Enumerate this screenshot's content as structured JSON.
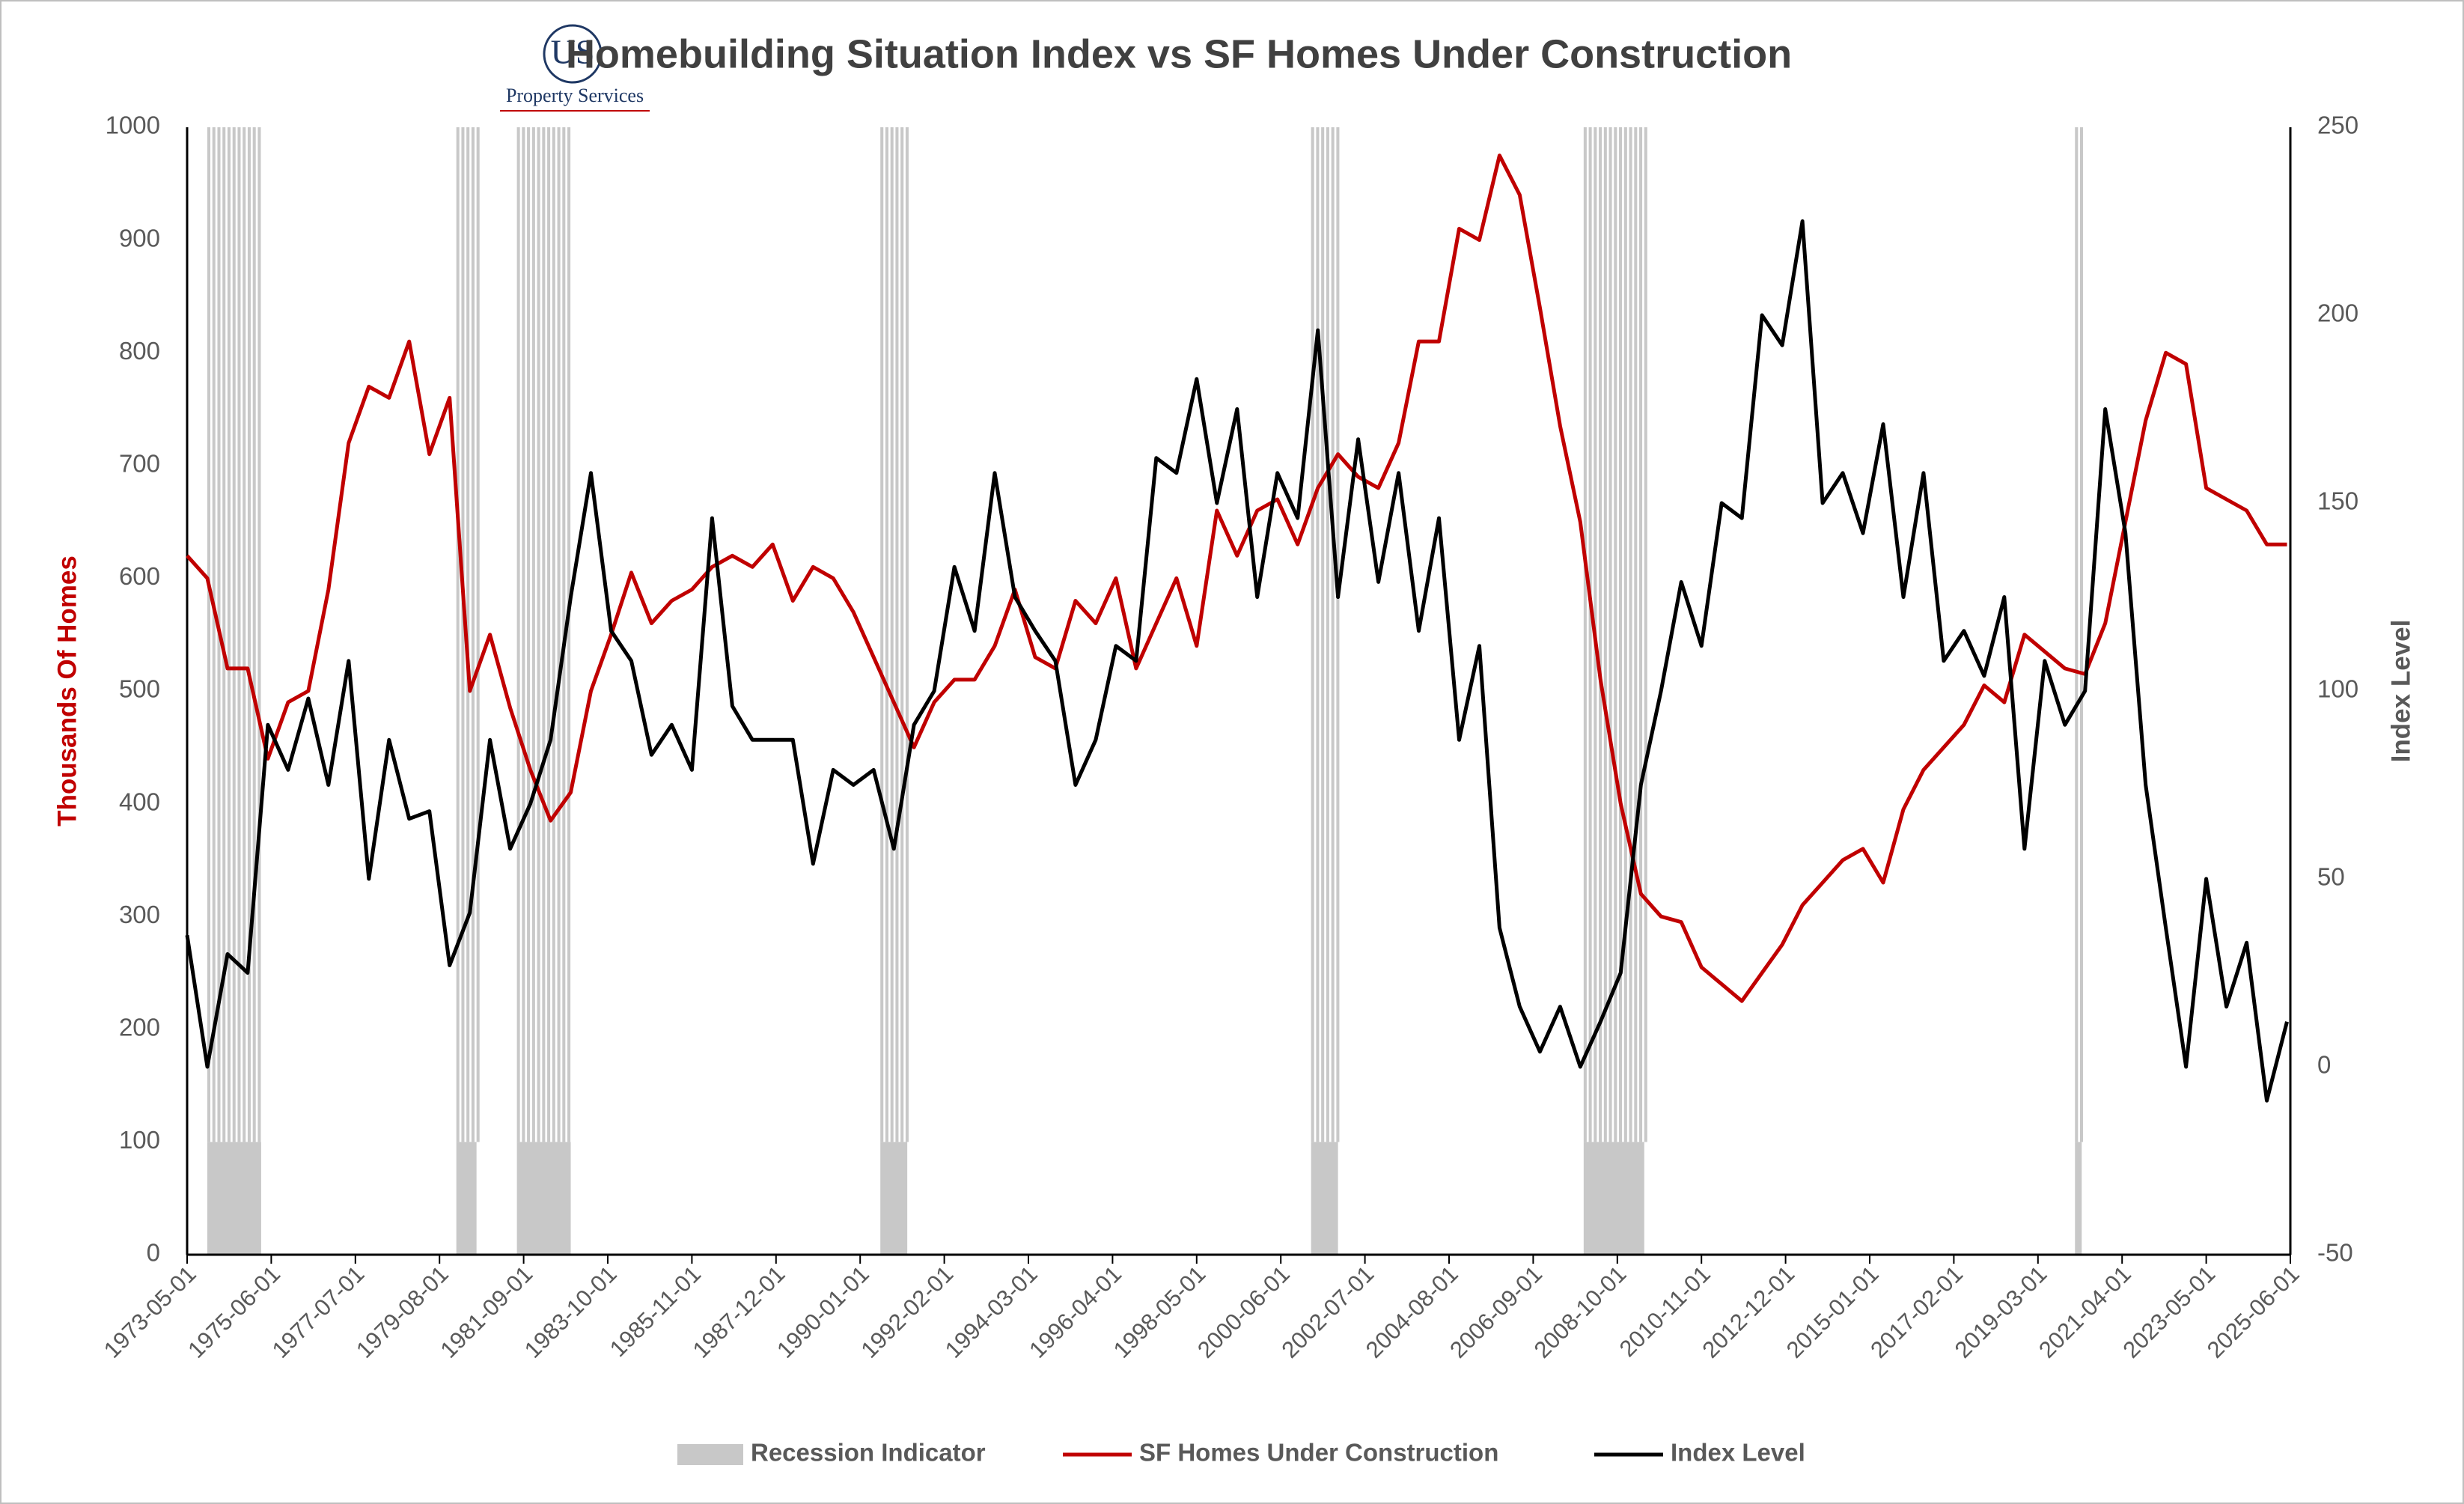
{
  "chart_data": {
    "type": "line",
    "title": "Homebuilding Situation Index vs SF Homes Under Construction",
    "logo": {
      "mark": "US",
      "name": "Property Services"
    },
    "y_label": "Thousands Of Homes",
    "y2_label": "Index Level",
    "ylim": [
      0,
      1000
    ],
    "yticks": [
      0,
      100,
      200,
      300,
      400,
      500,
      600,
      700,
      800,
      900,
      1000
    ],
    "y2lim": [
      -50,
      250
    ],
    "y2ticks": [
      -50,
      0,
      50,
      100,
      150,
      200,
      250
    ],
    "xlim": [
      "1973-05-01",
      "2025-06-01"
    ],
    "xticks": [
      "1973-05-01",
      "1975-06-01",
      "1977-07-01",
      "1979-08-01",
      "1981-09-01",
      "1983-10-01",
      "1985-11-01",
      "1987-12-01",
      "1990-01-01",
      "1992-02-01",
      "1994-03-01",
      "1996-04-01",
      "1998-05-01",
      "2000-06-01",
      "2002-07-01",
      "2004-08-01",
      "2006-09-01",
      "2008-10-01",
      "2010-11-01",
      "2012-12-01",
      "2015-01-01",
      "2017-02-01",
      "2019-03-01",
      "2021-04-01",
      "2023-05-01",
      "2025-06-01"
    ],
    "recession": {
      "name": "Recession Indicator",
      "color": "#c8c8c8",
      "value": 100,
      "periods": [
        [
          "1973-11-01",
          "1975-03-01"
        ],
        [
          "1980-01-01",
          "1980-07-01"
        ],
        [
          "1981-07-01",
          "1982-11-01"
        ],
        [
          "1990-07-01",
          "1991-03-01"
        ],
        [
          "2001-03-01",
          "2001-11-01"
        ],
        [
          "2007-12-01",
          "2009-06-01"
        ],
        [
          "2020-02-01",
          "2020-04-01"
        ]
      ]
    },
    "x": [
      "1973-05-01",
      "1973-11-01",
      "1974-05-01",
      "1974-11-01",
      "1975-05-01",
      "1975-11-01",
      "1976-05-01",
      "1976-11-01",
      "1977-05-01",
      "1977-11-01",
      "1978-05-01",
      "1978-11-01",
      "1979-05-01",
      "1979-11-01",
      "1980-05-01",
      "1980-11-01",
      "1981-05-01",
      "1981-11-01",
      "1982-05-01",
      "1982-11-01",
      "1983-05-01",
      "1983-11-01",
      "1984-05-01",
      "1984-11-01",
      "1985-05-01",
      "1985-11-01",
      "1986-05-01",
      "1986-11-01",
      "1987-05-01",
      "1987-11-01",
      "1988-05-01",
      "1988-11-01",
      "1989-05-01",
      "1989-11-01",
      "1990-05-01",
      "1990-11-01",
      "1991-05-01",
      "1991-11-01",
      "1992-05-01",
      "1992-11-01",
      "1993-05-01",
      "1993-11-01",
      "1994-05-01",
      "1994-11-01",
      "1995-05-01",
      "1995-11-01",
      "1996-05-01",
      "1996-11-01",
      "1997-05-01",
      "1997-11-01",
      "1998-05-01",
      "1998-11-01",
      "1999-05-01",
      "1999-11-01",
      "2000-05-01",
      "2000-11-01",
      "2001-05-01",
      "2001-11-01",
      "2002-05-01",
      "2002-11-01",
      "2003-05-01",
      "2003-11-01",
      "2004-05-01",
      "2004-11-01",
      "2005-05-01",
      "2005-11-01",
      "2006-05-01",
      "2006-11-01",
      "2007-05-01",
      "2007-11-01",
      "2008-05-01",
      "2008-11-01",
      "2009-05-01",
      "2009-11-01",
      "2010-05-01",
      "2010-11-01",
      "2011-05-01",
      "2011-11-01",
      "2012-05-01",
      "2012-11-01",
      "2013-05-01",
      "2013-11-01",
      "2014-05-01",
      "2014-11-01",
      "2015-05-01",
      "2015-11-01",
      "2016-05-01",
      "2016-11-01",
      "2017-05-01",
      "2017-11-01",
      "2018-05-01",
      "2018-11-01",
      "2019-05-01",
      "2019-11-01",
      "2020-05-01",
      "2020-11-01",
      "2021-05-01",
      "2021-11-01",
      "2022-05-01",
      "2022-11-01",
      "2023-05-01",
      "2023-11-01",
      "2024-05-01",
      "2024-11-01",
      "2025-05-01"
    ],
    "series": [
      {
        "name": "SF Homes Under Construction",
        "color": "#c00000",
        "values": [
          620,
          600,
          520,
          520,
          440,
          490,
          500,
          590,
          720,
          770,
          760,
          810,
          710,
          760,
          500,
          550,
          485,
          430,
          385,
          410,
          500,
          550,
          605,
          560,
          580,
          590,
          610,
          620,
          610,
          630,
          580,
          610,
          600,
          570,
          530,
          490,
          450,
          490,
          510,
          510,
          540,
          590,
          530,
          520,
          580,
          560,
          600,
          520,
          560,
          600,
          540,
          660,
          620,
          660,
          670,
          630,
          680,
          710,
          690,
          680,
          720,
          810,
          810,
          910,
          900,
          975,
          940,
          840,
          735,
          650,
          510,
          400,
          320,
          300,
          295,
          255,
          240,
          225,
          250,
          275,
          310,
          330,
          350,
          360,
          330,
          395,
          430,
          450,
          470,
          505,
          490,
          550,
          535,
          520,
          515,
          560,
          650,
          740,
          800,
          790,
          680,
          670,
          660,
          630,
          630
        ]
      },
      {
        "name": "Index Level",
        "color": "#000000",
        "axis": "y2",
        "values": [
          35,
          0,
          30,
          25,
          91,
          79,
          98,
          75,
          108,
          50,
          87,
          66,
          68,
          27,
          41,
          87,
          58,
          70,
          87,
          125,
          158,
          116,
          108,
          83,
          91,
          79,
          146,
          96,
          87,
          87,
          87,
          54,
          79,
          75,
          79,
          58,
          91,
          100,
          133,
          116,
          158,
          125,
          116,
          108,
          75,
          87,
          112,
          108,
          162,
          158,
          183,
          150,
          175,
          125,
          158,
          146,
          196,
          125,
          167,
          129,
          158,
          116,
          146,
          87,
          112,
          37,
          16,
          4,
          16,
          0,
          12,
          25,
          75,
          100,
          129,
          112,
          150,
          146,
          200,
          192,
          225,
          150,
          158,
          142,
          171,
          125,
          158,
          108,
          116,
          104,
          125,
          58,
          108,
          91,
          100,
          175,
          142,
          75,
          37,
          0,
          50,
          16,
          33,
          -9,
          12
        ]
      }
    ]
  }
}
